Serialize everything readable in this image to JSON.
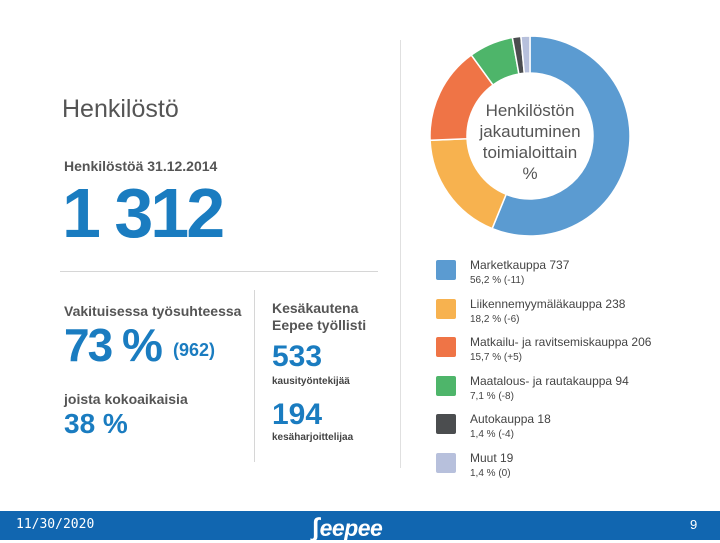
{
  "header": {
    "title": "Henkilöstö"
  },
  "headcount": {
    "label": "Henkilöstöä 31.12.2014",
    "value": "1 312"
  },
  "permanent": {
    "label": "Vakituisessa työsuhteessa",
    "percent": "73 %",
    "count": "(962)"
  },
  "fulltime": {
    "label": "joista kokoaikaisia",
    "percent": "38 %"
  },
  "summer": {
    "label_line1": "Kesäkautena",
    "label_line2": "Eepee työllisti",
    "seasonal_value": "533",
    "seasonal_label": "kausityöntekijää",
    "trainees_value": "194",
    "trainees_label": "kesäharjoittelijaa"
  },
  "donut": {
    "center_lines": [
      "Henkilöstön",
      "jakautuminen",
      "toimialoittain",
      "%"
    ]
  },
  "chart_data": {
    "type": "pie",
    "title": "Henkilöstön jakautuminen toimialoittain %",
    "series": [
      {
        "name": "Marketkauppa",
        "count": 737,
        "percent": 56.2,
        "change": "-11",
        "color": "#5b9bd1"
      },
      {
        "name": "Liikennemyymäläkauppa",
        "count": 238,
        "percent": 18.2,
        "change": "-6",
        "color": "#f7b24f"
      },
      {
        "name": "Matkailu- ja ravitsemiskauppa",
        "count": 206,
        "percent": 15.7,
        "change": "+5",
        "color": "#ef7446"
      },
      {
        "name": "Maatalous- ja rautakauppa",
        "count": 94,
        "percent": 7.1,
        "change": "-8",
        "color": "#4eb56a"
      },
      {
        "name": "Autokauppa",
        "count": 18,
        "percent": 1.4,
        "change": "-4",
        "color": "#4b4d4f"
      },
      {
        "name": "Muut",
        "count": 19,
        "percent": 1.4,
        "change": "0",
        "color": "#b7c0dc"
      }
    ],
    "legend": [
      {
        "title": "Marketkauppa 737",
        "detail": "56,2 % (-11)"
      },
      {
        "title": "Liikennemyymäläkauppa 238",
        "detail": "18,2 % (-6)"
      },
      {
        "title": "Matkailu- ja ravitsemiskauppa 206",
        "detail": "15,7 % (+5)"
      },
      {
        "title": "Maatalous- ja rautakauppa 94",
        "detail": "7,1 % (-8)"
      },
      {
        "title": "Autokauppa 18",
        "detail": "1,4 % (-4)"
      },
      {
        "title": "Muut 19",
        "detail": "1,4 % (0)"
      }
    ]
  },
  "footer": {
    "date": "11/30/2020",
    "logo": "eepee",
    "page": "9"
  }
}
